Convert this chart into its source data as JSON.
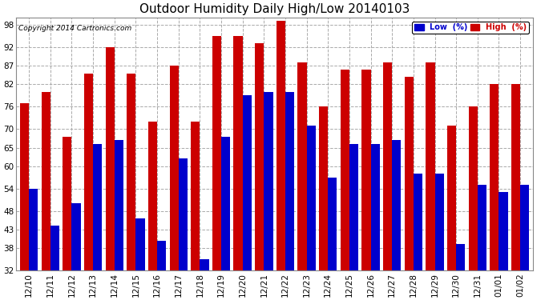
{
  "title": "Outdoor Humidity Daily High/Low 20140103",
  "copyright": "Copyright 2014 Cartronics.com",
  "legend_low": "Low  (%)",
  "legend_high": "High  (%)",
  "categories": [
    "12/10",
    "12/11",
    "12/12",
    "12/13",
    "12/14",
    "12/15",
    "12/16",
    "12/17",
    "12/18",
    "12/19",
    "12/20",
    "12/21",
    "12/22",
    "12/23",
    "12/24",
    "12/25",
    "12/26",
    "12/27",
    "12/28",
    "12/29",
    "12/30",
    "12/31",
    "01/01",
    "01/02"
  ],
  "low_values": [
    54,
    44,
    50,
    66,
    67,
    46,
    40,
    62,
    35,
    68,
    79,
    80,
    80,
    71,
    57,
    66,
    66,
    67,
    58,
    58,
    39,
    55,
    53,
    55
  ],
  "high_values": [
    77,
    80,
    68,
    85,
    92,
    85,
    72,
    87,
    72,
    95,
    95,
    93,
    99,
    88,
    76,
    86,
    86,
    88,
    84,
    88,
    71,
    76,
    82,
    82
  ],
  "bar_color_low": "#0000cc",
  "bar_color_high": "#cc0000",
  "ylim_min": 32,
  "ylim_max": 100,
  "yticks": [
    32,
    38,
    43,
    48,
    54,
    60,
    65,
    70,
    76,
    82,
    87,
    92,
    98
  ],
  "bg_color": "#ffffff",
  "grid_color": "#aaaaaa",
  "title_fontsize": 11,
  "tick_fontsize": 7.5,
  "bar_bottom": 32
}
